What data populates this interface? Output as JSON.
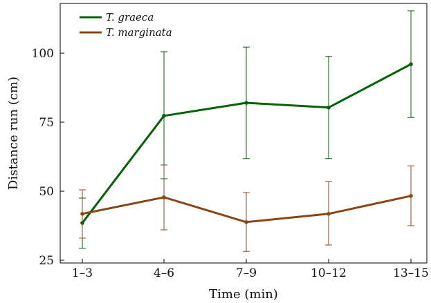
{
  "chart_data": {
    "type": "line",
    "categories": [
      "1–3",
      "4–6",
      "7–9",
      "10–12",
      "13–15"
    ],
    "xlabel": "Time (min)",
    "ylabel": "Distance run (cm)",
    "ylim": [
      24,
      118
    ],
    "yticks": [
      25,
      50,
      75,
      100
    ],
    "grid": false,
    "legend_position": "top-left",
    "series": [
      {
        "name": "T. graeca",
        "color": "#006400",
        "values": [
          38.5,
          77.3,
          82.0,
          80.3,
          96.0
        ],
        "error_low": [
          29.3,
          54.5,
          61.8,
          61.8,
          76.7
        ],
        "error_high": [
          47.5,
          100.5,
          102.2,
          98.8,
          115.3
        ]
      },
      {
        "name": "T. marginata",
        "color": "#8B4513",
        "values": [
          41.8,
          47.8,
          38.8,
          41.8,
          48.3
        ],
        "error_low": [
          33.0,
          36.0,
          28.2,
          30.5,
          37.5
        ],
        "error_high": [
          50.5,
          59.5,
          49.5,
          53.5,
          59.2
        ]
      }
    ]
  }
}
